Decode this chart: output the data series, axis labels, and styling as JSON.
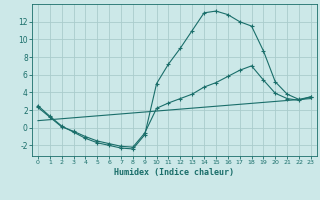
{
  "xlabel": "Humidex (Indice chaleur)",
  "xlim": [
    -0.5,
    23.5
  ],
  "ylim": [
    -3.2,
    14.0
  ],
  "background_color": "#cce8e8",
  "grid_color": "#aacccc",
  "line_color": "#1a6e6a",
  "line1_x": [
    0,
    1,
    2,
    3,
    4,
    5,
    6,
    7,
    8,
    9,
    10,
    11,
    12,
    13,
    14,
    15,
    16,
    17,
    18,
    19,
    20,
    21,
    22,
    23
  ],
  "line1_y": [
    2.5,
    1.3,
    0.2,
    -0.5,
    -1.2,
    -1.7,
    -2.0,
    -2.3,
    -2.4,
    -0.8,
    5.0,
    7.2,
    9.0,
    11.0,
    13.0,
    13.2,
    12.8,
    12.0,
    11.5,
    8.7,
    5.2,
    3.8,
    3.2,
    3.5
  ],
  "line2_x": [
    0,
    1,
    2,
    3,
    4,
    5,
    6,
    7,
    8,
    9,
    10,
    11,
    12,
    13,
    14,
    15,
    16,
    17,
    18,
    19,
    20,
    21,
    22,
    23
  ],
  "line2_y": [
    2.3,
    1.2,
    0.1,
    -0.4,
    -1.0,
    -1.5,
    -1.8,
    -2.1,
    -2.2,
    -0.6,
    2.2,
    2.8,
    3.3,
    3.8,
    4.6,
    5.1,
    5.8,
    6.5,
    7.0,
    5.4,
    3.9,
    3.3,
    3.1,
    3.5
  ],
  "line3_x": [
    0,
    23
  ],
  "line3_y": [
    0.8,
    3.3
  ],
  "xticks": [
    0,
    1,
    2,
    3,
    4,
    5,
    6,
    7,
    8,
    9,
    10,
    11,
    12,
    13,
    14,
    15,
    16,
    17,
    18,
    19,
    20,
    21,
    22,
    23
  ],
  "yticks": [
    -2,
    0,
    2,
    4,
    6,
    8,
    10,
    12
  ]
}
